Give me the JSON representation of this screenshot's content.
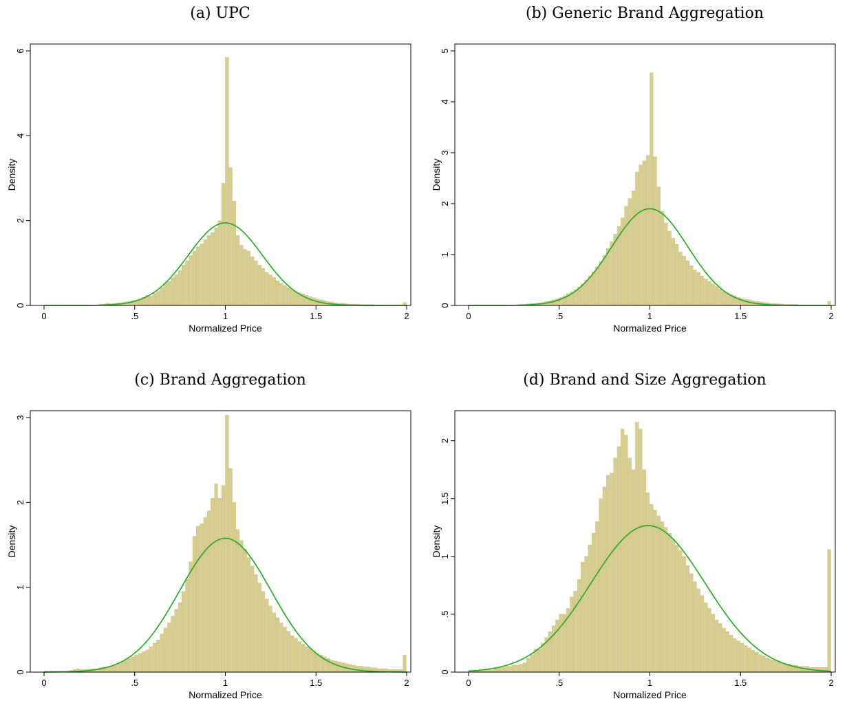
{
  "panels": [
    {
      "title": "(a) UPC",
      "chart_data": {
        "type": "bar",
        "xlabel": "Normalized Price",
        "ylabel": "Density",
        "xlim": [
          0,
          2
        ],
        "ylim": [
          0,
          6
        ],
        "xticks": [
          {
            "v": 0,
            "label": "0"
          },
          {
            "v": 0.5,
            "label": ".5"
          },
          {
            "v": 1,
            "label": "1"
          },
          {
            "v": 1.5,
            "label": "1.5"
          },
          {
            "v": 2,
            "label": "2"
          }
        ],
        "yticks": [
          {
            "v": 0,
            "label": "0"
          },
          {
            "v": 2,
            "label": "2"
          },
          {
            "v": 4,
            "label": "4"
          },
          {
            "v": 6,
            "label": "6"
          }
        ],
        "bin_start": 0,
        "bin_width": 0.02,
        "density": [
          0.01,
          0.01,
          0.01,
          0.01,
          0.01,
          0.01,
          0.01,
          0.01,
          0.01,
          0.01,
          0.01,
          0.01,
          0.01,
          0.01,
          0.01,
          0.02,
          0.03,
          0.05,
          0.04,
          0.05,
          0.06,
          0.07,
          0.08,
          0.09,
          0.11,
          0.13,
          0.15,
          0.19,
          0.24,
          0.22,
          0.29,
          0.33,
          0.42,
          0.52,
          0.56,
          0.65,
          0.73,
          0.82,
          0.95,
          1.05,
          1.18,
          1.28,
          1.38,
          1.45,
          1.55,
          1.65,
          1.72,
          1.83,
          2.0,
          2.88,
          5.85,
          3.25,
          2.46,
          1.65,
          1.42,
          1.32,
          1.28,
          1.15,
          1.05,
          0.95,
          0.87,
          0.78,
          0.72,
          0.66,
          0.58,
          0.52,
          0.47,
          0.42,
          0.38,
          0.33,
          0.3,
          0.27,
          0.24,
          0.21,
          0.18,
          0.15,
          0.13,
          0.11,
          0.09,
          0.08,
          0.06,
          0.05,
          0.05,
          0.04,
          0.03,
          0.03,
          0.03,
          0.02,
          0.02,
          0.02,
          0.02,
          0.01,
          0.01,
          0.01,
          0.01,
          0.01,
          0.01,
          0.01,
          0.01,
          0.07
        ],
        "normal_curve": {
          "mean": 1.0,
          "sd": 0.205
        }
      }
    },
    {
      "title": "(b) Generic Brand Aggregation",
      "chart_data": {
        "type": "bar",
        "xlabel": "Normalized Price",
        "ylabel": "Density",
        "xlim": [
          0,
          2
        ],
        "ylim": [
          0,
          5
        ],
        "xticks": [
          {
            "v": 0,
            "label": "0"
          },
          {
            "v": 0.5,
            "label": ".5"
          },
          {
            "v": 1,
            "label": "1"
          },
          {
            "v": 1.5,
            "label": "1.5"
          },
          {
            "v": 2,
            "label": "2"
          }
        ],
        "yticks": [
          {
            "v": 0,
            "label": "0"
          },
          {
            "v": 1,
            "label": "1"
          },
          {
            "v": 2,
            "label": "2"
          },
          {
            "v": 3,
            "label": "3"
          },
          {
            "v": 4,
            "label": "4"
          },
          {
            "v": 5,
            "label": "5"
          }
        ],
        "bin_start": 0,
        "bin_width": 0.02,
        "density": [
          0.01,
          0.01,
          0.01,
          0.01,
          0.01,
          0.01,
          0.01,
          0.01,
          0.01,
          0.01,
          0.01,
          0.01,
          0.01,
          0.01,
          0.02,
          0.02,
          0.03,
          0.04,
          0.04,
          0.05,
          0.06,
          0.08,
          0.09,
          0.11,
          0.13,
          0.16,
          0.19,
          0.23,
          0.27,
          0.31,
          0.36,
          0.42,
          0.5,
          0.58,
          0.66,
          0.76,
          0.86,
          0.98,
          1.12,
          1.25,
          1.4,
          1.55,
          1.72,
          1.95,
          2.1,
          2.25,
          2.62,
          2.76,
          2.84,
          2.95,
          4.57,
          2.92,
          2.33,
          1.85,
          1.62,
          1.46,
          1.32,
          1.2,
          1.05,
          0.97,
          0.88,
          0.78,
          0.7,
          0.65,
          0.58,
          0.52,
          0.47,
          0.42,
          0.37,
          0.32,
          0.28,
          0.24,
          0.21,
          0.19,
          0.16,
          0.14,
          0.12,
          0.11,
          0.09,
          0.08,
          0.07,
          0.06,
          0.05,
          0.04,
          0.04,
          0.03,
          0.03,
          0.02,
          0.02,
          0.02,
          0.02,
          0.01,
          0.01,
          0.01,
          0.01,
          0.01,
          0.01,
          0.01,
          0.01,
          0.08
        ],
        "normal_curve": {
          "mean": 1.0,
          "sd": 0.21
        }
      }
    },
    {
      "title": "(c) Brand Aggregation",
      "chart_data": {
        "type": "bar",
        "xlabel": "Normalized Price",
        "ylabel": "Density",
        "xlim": [
          0,
          2
        ],
        "ylim": [
          0,
          3
        ],
        "xticks": [
          {
            "v": 0,
            "label": "0"
          },
          {
            "v": 0.5,
            "label": ".5"
          },
          {
            "v": 1,
            "label": "1"
          },
          {
            "v": 1.5,
            "label": "1.5"
          },
          {
            "v": 2,
            "label": "2"
          }
        ],
        "yticks": [
          {
            "v": 0,
            "label": "0"
          },
          {
            "v": 1,
            "label": "1"
          },
          {
            "v": 2,
            "label": "2"
          },
          {
            "v": 3,
            "label": "3"
          }
        ],
        "bin_start": 0,
        "bin_width": 0.02,
        "density": [
          0.01,
          0.01,
          0.01,
          0.01,
          0.01,
          0.01,
          0.01,
          0.02,
          0.03,
          0.04,
          0.03,
          0.03,
          0.03,
          0.04,
          0.04,
          0.05,
          0.06,
          0.06,
          0.07,
          0.08,
          0.1,
          0.12,
          0.14,
          0.16,
          0.18,
          0.2,
          0.22,
          0.24,
          0.26,
          0.3,
          0.34,
          0.38,
          0.45,
          0.52,
          0.58,
          0.66,
          0.74,
          0.82,
          0.95,
          1.1,
          1.3,
          1.6,
          1.72,
          1.75,
          1.82,
          1.9,
          2.05,
          2.22,
          2.05,
          2.2,
          3.03,
          2.4,
          2.0,
          1.68,
          1.55,
          1.45,
          1.35,
          1.25,
          1.15,
          1.05,
          0.95,
          0.86,
          0.78,
          0.7,
          0.64,
          0.58,
          0.53,
          0.48,
          0.43,
          0.4,
          0.36,
          0.33,
          0.3,
          0.28,
          0.25,
          0.22,
          0.2,
          0.18,
          0.16,
          0.14,
          0.13,
          0.12,
          0.11,
          0.1,
          0.09,
          0.08,
          0.07,
          0.07,
          0.06,
          0.06,
          0.05,
          0.05,
          0.04,
          0.04,
          0.04,
          0.03,
          0.03,
          0.03,
          0.03,
          0.2
        ],
        "normal_curve": {
          "mean": 1.0,
          "sd": 0.253
        }
      }
    },
    {
      "title": "(d) Brand and Size Aggregation",
      "chart_data": {
        "type": "bar",
        "xlabel": "Normalized Price",
        "ylabel": "Density",
        "xlim": [
          0,
          2
        ],
        "ylim": [
          0,
          2.2
        ],
        "xticks": [
          {
            "v": 0,
            "label": "0"
          },
          {
            "v": 0.5,
            "label": ".5"
          },
          {
            "v": 1,
            "label": "1"
          },
          {
            "v": 1.5,
            "label": "1.5"
          },
          {
            "v": 2,
            "label": "2"
          }
        ],
        "yticks": [
          {
            "v": 0,
            "label": "0"
          },
          {
            "v": 0.5,
            "label": ".5"
          },
          {
            "v": 1,
            "label": "1"
          },
          {
            "v": 1.5,
            "label": "1.5"
          },
          {
            "v": 2,
            "label": "2"
          }
        ],
        "bin_start": 0,
        "bin_width": 0.02,
        "density": [
          0.01,
          0.01,
          0.01,
          0.01,
          0.02,
          0.02,
          0.02,
          0.03,
          0.04,
          0.04,
          0.05,
          0.05,
          0.06,
          0.06,
          0.07,
          0.08,
          0.12,
          0.15,
          0.2,
          0.2,
          0.25,
          0.3,
          0.35,
          0.4,
          0.45,
          0.5,
          0.5,
          0.55,
          0.65,
          0.7,
          0.8,
          0.95,
          1.0,
          1.1,
          1.2,
          1.3,
          1.5,
          1.6,
          1.7,
          1.72,
          1.85,
          1.95,
          2.1,
          2.05,
          1.85,
          1.75,
          2.16,
          2.1,
          1.75,
          1.55,
          1.45,
          1.4,
          1.35,
          1.3,
          1.25,
          1.2,
          1.15,
          1.1,
          1.05,
          1.0,
          0.92,
          0.85,
          0.78,
          0.72,
          0.66,
          0.6,
          0.55,
          0.5,
          0.45,
          0.42,
          0.38,
          0.35,
          0.32,
          0.29,
          0.27,
          0.25,
          0.23,
          0.21,
          0.19,
          0.17,
          0.15,
          0.14,
          0.12,
          0.11,
          0.1,
          0.09,
          0.08,
          0.07,
          0.07,
          0.06,
          0.06,
          0.05,
          0.05,
          0.05,
          0.04,
          0.04,
          0.04,
          0.04,
          0.04,
          1.06
        ],
        "normal_curve": {
          "mean": 0.99,
          "sd": 0.315
        }
      }
    }
  ],
  "colors": {
    "bar_fill": "#d6cd8f",
    "bar_stroke": "#c2b87a",
    "curve": "#1faa1f",
    "axis": "#000000"
  }
}
